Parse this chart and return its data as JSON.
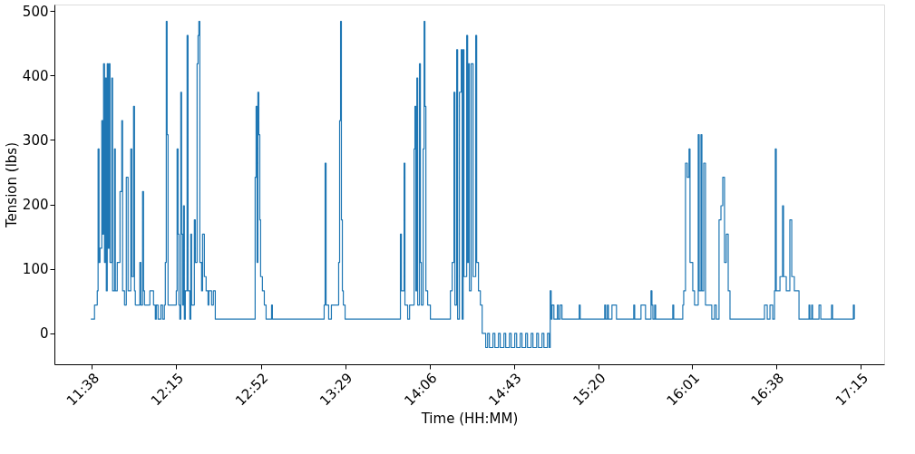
{
  "chart_data": {
    "type": "step",
    "xlabel": "Time (HH:MM)",
    "ylabel": "Tension (lbs)",
    "grid": false,
    "legend": false,
    "marker": "none",
    "line_style": "solid",
    "xlim": [
      11.36,
      17.42
    ],
    "ylim": [
      -48,
      510
    ],
    "yticks": [
      0,
      100,
      200,
      300,
      400,
      500
    ],
    "xticks": [
      {
        "value": 11.633,
        "label": "11:38"
      },
      {
        "value": 12.25,
        "label": "12:15"
      },
      {
        "value": 12.867,
        "label": "12:52"
      },
      {
        "value": 13.483,
        "label": "13:29"
      },
      {
        "value": 14.1,
        "label": "14:06"
      },
      {
        "value": 14.717,
        "label": "14:43"
      },
      {
        "value": 15.333,
        "label": "15:20"
      },
      {
        "value": 16.017,
        "label": "16:01"
      },
      {
        "value": 16.633,
        "label": "16:38"
      },
      {
        "value": 17.25,
        "label": "17:15"
      }
    ],
    "series": [
      {
        "color": "#1f77b4",
        "x": [
          11.626,
          11.653,
          11.673,
          11.679,
          11.686,
          11.693,
          11.706,
          11.713,
          11.719,
          11.726,
          11.732,
          11.739,
          11.746,
          11.752,
          11.759,
          11.766,
          11.779,
          11.785,
          11.799,
          11.805,
          11.819,
          11.839,
          11.852,
          11.858,
          11.872,
          11.885,
          11.898,
          11.918,
          11.925,
          11.938,
          11.945,
          11.951,
          11.984,
          11.991,
          12.004,
          12.011,
          12.018,
          12.057,
          12.084,
          12.097,
          12.104,
          12.117,
          12.137,
          12.15,
          12.163,
          12.17,
          12.177,
          12.183,
          12.19,
          12.25,
          12.256,
          12.263,
          12.269,
          12.276,
          12.283,
          12.289,
          12.296,
          12.303,
          12.309,
          12.316,
          12.329,
          12.336,
          12.349,
          12.356,
          12.362,
          12.382,
          12.389,
          12.402,
          12.409,
          12.415,
          12.422,
          12.435,
          12.442,
          12.455,
          12.468,
          12.482,
          12.488,
          12.508,
          12.521,
          12.535,
          12.826,
          12.833,
          12.84,
          12.846,
          12.853,
          12.86,
          12.866,
          12.879,
          12.893,
          12.906,
          12.946,
          12.952,
          13.33,
          13.337,
          13.344,
          13.363,
          13.383,
          13.436,
          13.443,
          13.45,
          13.456,
          13.463,
          13.47,
          13.483,
          13.887,
          13.894,
          13.914,
          13.92,
          13.94,
          13.954,
          13.987,
          13.993,
          14.0,
          14.007,
          14.013,
          14.026,
          14.033,
          14.04,
          14.053,
          14.06,
          14.066,
          14.073,
          14.086,
          14.106,
          14.252,
          14.265,
          14.278,
          14.285,
          14.298,
          14.305,
          14.318,
          14.331,
          14.338,
          14.345,
          14.351,
          14.371,
          14.378,
          14.384,
          14.391,
          14.404,
          14.418,
          14.437,
          14.444,
          14.457,
          14.471,
          14.484,
          14.51,
          14.524,
          14.537,
          14.563,
          14.577,
          14.603,
          14.616,
          14.643,
          14.656,
          14.683,
          14.696,
          14.722,
          14.736,
          14.762,
          14.775,
          14.802,
          14.815,
          14.842,
          14.855,
          14.882,
          14.895,
          14.921,
          14.935,
          14.961,
          14.974,
          14.981,
          14.988,
          14.994,
          15.008,
          15.034,
          15.041,
          15.054,
          15.067,
          15.193,
          15.2,
          15.379,
          15.386,
          15.399,
          15.406,
          15.432,
          15.465,
          15.591,
          15.598,
          15.644,
          15.677,
          15.717,
          15.724,
          15.731,
          15.744,
          15.751,
          15.876,
          15.883,
          15.949,
          15.956,
          15.969,
          15.982,
          15.995,
          16.002,
          16.022,
          16.035,
          16.062,
          16.069,
          16.082,
          16.089,
          16.102,
          16.115,
          16.161,
          16.181,
          16.194,
          16.214,
          16.228,
          16.241,
          16.254,
          16.267,
          16.281,
          16.294,
          16.546,
          16.566,
          16.586,
          16.606,
          16.619,
          16.625,
          16.632,
          16.659,
          16.678,
          16.685,
          16.705,
          16.731,
          16.745,
          16.764,
          16.798,
          16.871,
          16.877,
          16.891,
          16.897,
          16.944,
          16.957,
          17.036,
          17.043,
          17.195,
          17.202
        ],
        "values": [
          22,
          44,
          66,
          286,
          110,
          132,
          330,
          154,
          418,
          110,
          396,
          66,
          418,
          132,
          418,
          110,
          396,
          66,
          286,
          66,
          110,
          220,
          330,
          66,
          44,
          242,
          66,
          286,
          88,
          352,
          66,
          44,
          110,
          44,
          220,
          66,
          44,
          66,
          44,
          22,
          44,
          22,
          44,
          22,
          44,
          110,
          484,
          308,
          44,
          66,
          286,
          154,
          44,
          22,
          374,
          154,
          44,
          198,
          22,
          66,
          462,
          66,
          22,
          154,
          44,
          176,
          110,
          418,
          462,
          484,
          110,
          66,
          154,
          88,
          66,
          44,
          66,
          44,
          66,
          22,
          242,
          352,
          110,
          374,
          308,
          176,
          88,
          66,
          44,
          22,
          44,
          22,
          44,
          264,
          44,
          22,
          44,
          110,
          330,
          484,
          176,
          66,
          44,
          22,
          154,
          66,
          264,
          44,
          22,
          44,
          286,
          352,
          66,
          396,
          44,
          418,
          110,
          44,
          286,
          484,
          352,
          66,
          44,
          22,
          66,
          110,
          374,
          44,
          440,
          22,
          374,
          440,
          22,
          440,
          88,
          462,
          110,
          418,
          66,
          418,
          88,
          462,
          110,
          66,
          44,
          0,
          -22,
          0,
          -22,
          0,
          -22,
          0,
          -22,
          0,
          -22,
          0,
          -22,
          0,
          -22,
          0,
          -22,
          0,
          -22,
          0,
          -22,
          0,
          -22,
          0,
          -22,
          0,
          -22,
          66,
          22,
          44,
          22,
          44,
          22,
          44,
          22,
          44,
          22,
          44,
          22,
          44,
          22,
          44,
          22,
          44,
          22,
          44,
          22,
          66,
          44,
          22,
          44,
          22,
          44,
          22,
          44,
          66,
          264,
          242,
          286,
          110,
          66,
          44,
          308,
          66,
          308,
          66,
          264,
          44,
          22,
          44,
          22,
          176,
          198,
          242,
          110,
          154,
          66,
          22,
          44,
          22,
          44,
          22,
          66,
          286,
          66,
          88,
          198,
          88,
          66,
          176,
          88,
          66,
          22,
          44,
          22,
          44,
          22,
          44,
          22,
          44,
          22,
          44,
          22
        ]
      }
    ]
  }
}
